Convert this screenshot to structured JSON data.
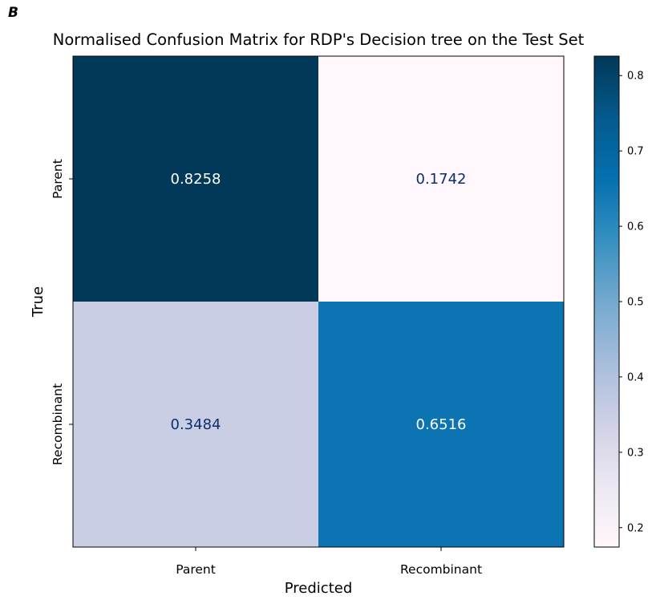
{
  "panel_label": "B",
  "colors": {
    "cmap": "PuBu",
    "text_dark": "#08306b",
    "text_light": "#ffffff"
  },
  "chart_data": {
    "type": "heatmap",
    "title": "Normalised Confusion Matrix for RDP's Decision tree on the Test Set",
    "xlabel": "Predicted",
    "ylabel": "True",
    "x_categories": [
      "Parent",
      "Recombinant"
    ],
    "y_categories": [
      "Parent",
      "Recombinant"
    ],
    "values": [
      [
        0.8258,
        0.1742
      ],
      [
        0.3484,
        0.6516
      ]
    ],
    "value_labels": [
      [
        "0.8258",
        "0.1742"
      ],
      [
        "0.3484",
        "0.6516"
      ]
    ],
    "colorbar": {
      "min": 0.1742,
      "max": 0.8258,
      "ticks": [
        0.2,
        0.3,
        0.4,
        0.5,
        0.6,
        0.7,
        0.8
      ],
      "tick_labels": [
        "0.2",
        "0.3",
        "0.4",
        "0.5",
        "0.6",
        "0.7",
        "0.8"
      ]
    },
    "grid": false
  }
}
